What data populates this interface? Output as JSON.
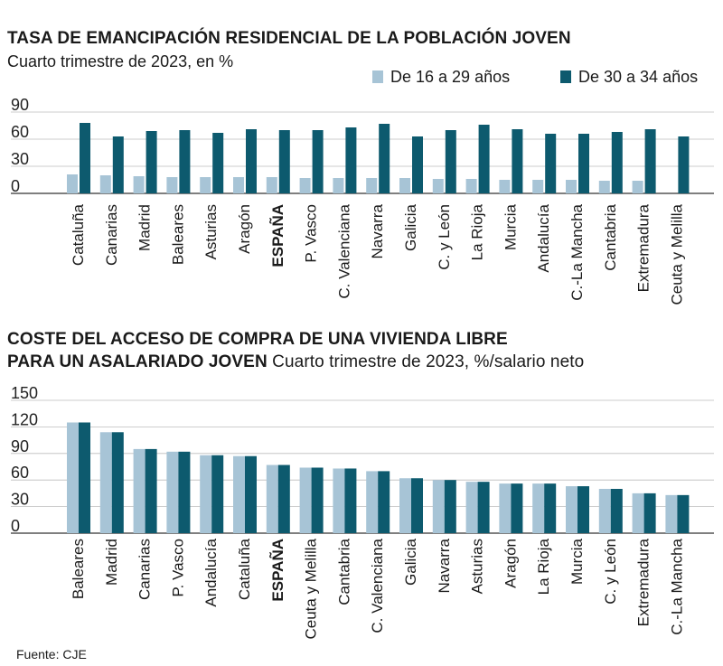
{
  "source": "Fuente: CJE",
  "chart_data": [
    {
      "type": "bar",
      "title": "TASA DE EMANCIPACIÓN RESIDENCIAL DE LA POBLACIÓN JOVEN",
      "subtitle": "Cuarto trimestre de 2023, en %",
      "categories": [
        "Cataluña",
        "Canarias",
        "Madrid",
        "Baleares",
        "Asturias",
        "Aragón",
        "ESPAÑA",
        "P. Vasco",
        "C. Valenciana",
        "Navarra",
        "Galicia",
        "C. y León",
        "La Rioja",
        "Murcia",
        "Andalucía",
        "C.-La Mancha",
        "Cantabria",
        "Extremadura",
        "Ceuta y Melilla"
      ],
      "highlight_category": "ESPAÑA",
      "series": [
        {
          "name": "De 16 a 29 años",
          "color": "#a7c4d6",
          "values": [
            21,
            20,
            19,
            18,
            18,
            18,
            18,
            17,
            17,
            17,
            17,
            16,
            16,
            15,
            15,
            15,
            14,
            14,
            0
          ]
        },
        {
          "name": "De 30 a 34 años",
          "color": "#0d5a6e",
          "values": [
            78,
            63,
            69,
            70,
            67,
            71,
            70,
            70,
            73,
            77,
            63,
            70,
            76,
            71,
            66,
            66,
            68,
            71,
            63
          ]
        }
      ],
      "yticks": [
        0,
        30,
        60,
        90
      ],
      "ylim": [
        0,
        90
      ],
      "legend": "top-right"
    },
    {
      "type": "bar",
      "title": "COSTE DEL ACCESO DE COMPRA DE UNA VIVIENDA LIBRE",
      "title_line2": "PARA UN ASALARIADO JOVEN",
      "subtitle": "Cuarto trimestre de 2023,  %/salario neto",
      "categories": [
        "Baleares",
        "Madrid",
        "Canarias",
        "P. Vasco",
        "Andalucía",
        "Cataluña",
        "ESPAÑA",
        "Ceuta y Melilla",
        "Cantabria",
        "C. Valenciana",
        "Galicia",
        "Navarra",
        "Asturias",
        "Aragón",
        "La Rioja",
        "Murcia",
        "C. y León",
        "Extremadura",
        "C.-La Mancha"
      ],
      "highlight_category": "ESPAÑA",
      "series": [
        {
          "color": "#a7c4d6",
          "values": [
            125,
            114,
            95,
            92,
            88,
            87,
            77,
            74,
            73,
            70,
            62,
            60,
            58,
            56,
            56,
            53,
            50,
            45,
            43
          ]
        },
        {
          "color": "#0d5a6e",
          "values": [
            125,
            114,
            95,
            92,
            88,
            87,
            77,
            74,
            73,
            70,
            62,
            60,
            58,
            56,
            56,
            53,
            50,
            45,
            43
          ]
        }
      ],
      "yticks": [
        0,
        30,
        60,
        90,
        120,
        150
      ],
      "ylim": [
        0,
        150
      ]
    }
  ]
}
